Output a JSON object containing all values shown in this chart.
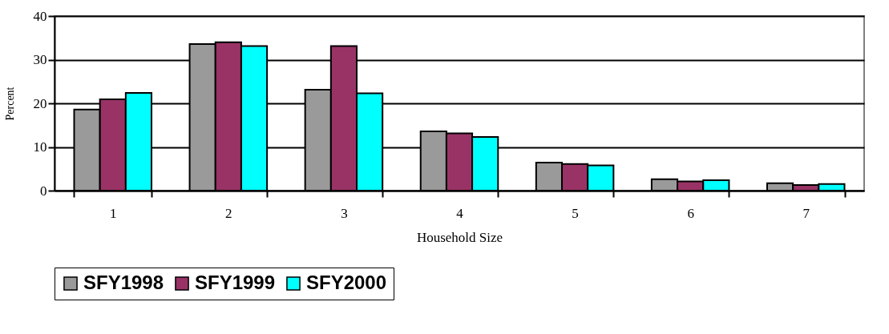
{
  "chart_data": {
    "type": "bar",
    "xlabel": "Household Size",
    "ylabel": "Percent",
    "categories": [
      "1",
      "2",
      "3",
      "4",
      "5",
      "6",
      "7"
    ],
    "series": [
      {
        "name": "SFY1998",
        "color": "#9a9a9a",
        "values": [
          18.6,
          33.6,
          23.1,
          13.6,
          6.4,
          2.6,
          1.7
        ]
      },
      {
        "name": "SFY1999",
        "color": "#993366",
        "values": [
          20.9,
          34.0,
          33.1,
          13.1,
          6.1,
          2.1,
          1.3
        ]
      },
      {
        "name": "SFY2000",
        "color": "#00ffff",
        "values": [
          22.4,
          33.1,
          22.3,
          12.3,
          5.8,
          2.4,
          1.5
        ]
      }
    ],
    "ylim": [
      0,
      40
    ],
    "yticks": [
      0,
      10,
      20,
      30,
      40
    ],
    "grid": "y",
    "legend": "bottom"
  }
}
